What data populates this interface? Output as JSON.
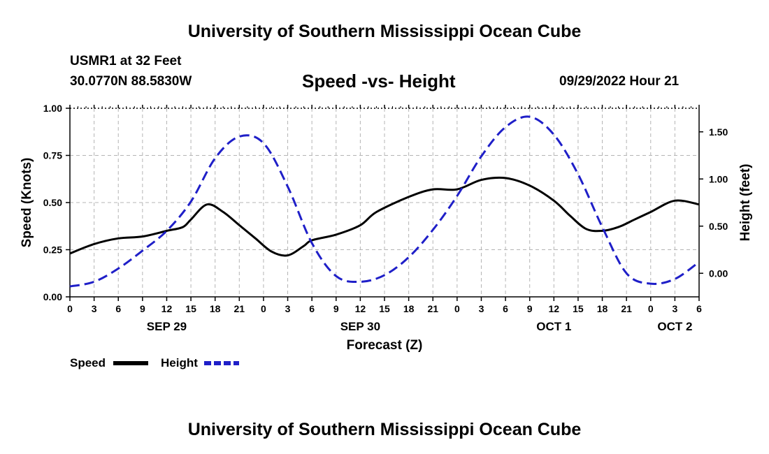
{
  "header": {
    "title": "University of Southern Mississippi Ocean Cube",
    "station": "USMR1 at 32 Feet",
    "coords": "30.0770N  88.5830W",
    "subtitle": "Speed -vs- Height",
    "datetime": "09/29/2022 Hour 21"
  },
  "footer": {
    "title": "University of Southern Mississippi Ocean Cube"
  },
  "chart_data": {
    "type": "line",
    "title": "Speed -vs- Height",
    "xlabel": "Forecast (Z)",
    "ylabel": "Speed (Knots)",
    "y2label": "Height (feet)",
    "x_unit": "hours from SEP 29 00Z",
    "xlim": [
      0,
      78
    ],
    "ylim": [
      0,
      1
    ],
    "y2lim": [
      -0.25,
      1.75
    ],
    "grid": true,
    "x_ticks": [
      0,
      3,
      6,
      9,
      12,
      15,
      18,
      21,
      24,
      27,
      30,
      33,
      36,
      39,
      42,
      45,
      48,
      51,
      54,
      57,
      60,
      63,
      66,
      69,
      72,
      75,
      78
    ],
    "x_tick_labels": [
      "0",
      "3",
      "6",
      "9",
      "12",
      "15",
      "18",
      "21",
      "0",
      "3",
      "6",
      "9",
      "12",
      "15",
      "18",
      "21",
      "0",
      "3",
      "6",
      "9",
      "12",
      "15",
      "18",
      "21",
      "0",
      "3",
      "6"
    ],
    "y_ticks": [
      0,
      0.25,
      0.5,
      0.75,
      1
    ],
    "y_tick_labels": [
      "0.00",
      "0.25",
      "0.50",
      "0.75",
      "1.00"
    ],
    "y2_ticks": [
      0,
      0.5,
      1,
      1.5
    ],
    "y2_tick_labels": [
      "0.00",
      "0.50",
      "1.00",
      "1.50"
    ],
    "day_labels": [
      {
        "label": "SEP 29",
        "x": 12
      },
      {
        "label": "SEP 30",
        "x": 36
      },
      {
        "label": "OCT 1",
        "x": 60
      },
      {
        "label": "OCT 2",
        "x": 75
      }
    ],
    "legend_position": "bottom-left",
    "series": [
      {
        "name": "Speed",
        "axis": "left",
        "color": "#000000",
        "dash": "solid",
        "x": [
          0,
          3,
          6,
          9,
          12,
          14,
          15,
          17,
          19,
          21,
          23,
          25,
          27,
          29,
          30,
          33,
          36,
          38,
          42,
          45,
          48,
          51,
          54,
          57,
          60,
          62,
          64,
          66,
          68,
          70,
          72,
          75,
          78
        ],
        "values": [
          0.23,
          0.28,
          0.31,
          0.32,
          0.35,
          0.37,
          0.41,
          0.49,
          0.45,
          0.38,
          0.31,
          0.24,
          0.22,
          0.27,
          0.3,
          0.33,
          0.38,
          0.45,
          0.53,
          0.57,
          0.57,
          0.62,
          0.63,
          0.59,
          0.51,
          0.43,
          0.36,
          0.35,
          0.37,
          0.41,
          0.45,
          0.51,
          0.49
        ]
      },
      {
        "name": "Height",
        "axis": "right",
        "color": "#1f1fc8",
        "dash": "dashed",
        "x": [
          0,
          3,
          6,
          9,
          12,
          15,
          18,
          21,
          24,
          27,
          30,
          33,
          36,
          39,
          42,
          45,
          48,
          51,
          54,
          57,
          60,
          63,
          66,
          69,
          72,
          75,
          78
        ],
        "values": [
          -0.14,
          -0.09,
          0.05,
          0.24,
          0.45,
          0.76,
          1.22,
          1.45,
          1.38,
          0.92,
          0.32,
          -0.03,
          -0.09,
          -0.02,
          0.17,
          0.46,
          0.82,
          1.24,
          1.55,
          1.66,
          1.47,
          1.05,
          0.49,
          0.0,
          -0.11,
          -0.06,
          0.12
        ]
      }
    ]
  }
}
